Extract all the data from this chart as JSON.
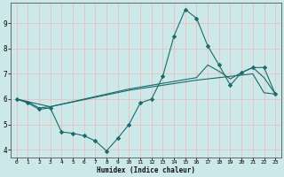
{
  "xlabel": "Humidex (Indice chaleur)",
  "xlim": [
    -0.5,
    23.5
  ],
  "ylim": [
    3.7,
    9.8
  ],
  "xticks": [
    0,
    1,
    2,
    3,
    4,
    5,
    6,
    7,
    8,
    9,
    10,
    11,
    12,
    13,
    14,
    15,
    16,
    17,
    18,
    19,
    20,
    21,
    22,
    23
  ],
  "yticks": [
    4,
    5,
    6,
    7,
    8,
    9
  ],
  "bg_color": "#cce8e8",
  "grid_color": "#f0b8b8",
  "line_color": "#1a6b6b",
  "line1_x": [
    0,
    1,
    2,
    3,
    4,
    5,
    6,
    7,
    8,
    9,
    10,
    11,
    12,
    13,
    14,
    15,
    16,
    17,
    18,
    19,
    20,
    21,
    22,
    23
  ],
  "line1_y": [
    6.0,
    5.85,
    5.6,
    5.65,
    4.7,
    4.65,
    4.55,
    4.35,
    3.95,
    4.45,
    5.0,
    5.85,
    6.0,
    6.9,
    8.5,
    9.55,
    9.2,
    8.1,
    7.35,
    6.55,
    7.05,
    7.25,
    7.25,
    6.2
  ],
  "line2_x": [
    0,
    1,
    2,
    3,
    10,
    13,
    16,
    17,
    18,
    19,
    20,
    21,
    22,
    23
  ],
  "line2_y": [
    6.0,
    5.9,
    5.65,
    5.7,
    6.35,
    6.55,
    6.75,
    6.8,
    6.85,
    6.9,
    6.95,
    7.0,
    6.25,
    6.2
  ],
  "line3_x": [
    0,
    3,
    10,
    16,
    17,
    18,
    19,
    20,
    21,
    22,
    23
  ],
  "line3_y": [
    6.0,
    5.7,
    6.4,
    6.85,
    7.35,
    7.1,
    6.8,
    7.05,
    7.25,
    6.85,
    6.2
  ]
}
